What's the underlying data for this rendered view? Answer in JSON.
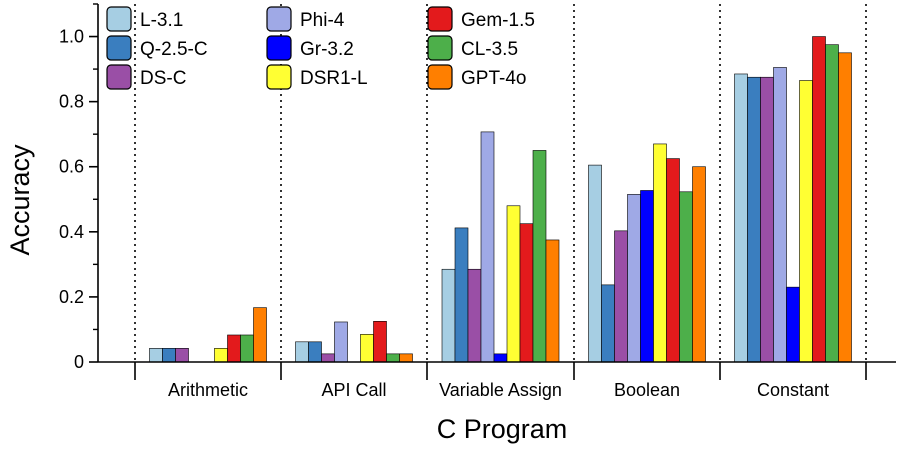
{
  "chart_data": {
    "type": "bar",
    "title": "",
    "xlabel": "C Program",
    "ylabel": "Accuracy",
    "ylim": [
      0,
      1.1
    ],
    "yticks": [
      0,
      0.2,
      0.4,
      0.6,
      0.8,
      1.0
    ],
    "ytick_labels": [
      "0",
      "0.2",
      "0.4",
      "0.6",
      "0.8",
      "1.0"
    ],
    "grid": false,
    "legend_position": "top-left",
    "categories": [
      "Arithmetic",
      "API Call",
      "Variable Assign",
      "Boolean",
      "Constant"
    ],
    "series": [
      {
        "name": "L-3.1",
        "color": "#a6cee3",
        "values": [
          0.042,
          0.062,
          0.285,
          0.605,
          0.885
        ]
      },
      {
        "name": "Q-2.5-C",
        "color": "#3a7ebf",
        "values": [
          0.042,
          0.062,
          0.412,
          0.237,
          0.875
        ]
      },
      {
        "name": "DS-C",
        "color": "#9a4fa6",
        "values": [
          0.042,
          0.025,
          0.285,
          0.403,
          0.875
        ]
      },
      {
        "name": "Phi-4",
        "color": "#9fa9e6",
        "values": [
          0.0,
          0.123,
          0.707,
          0.515,
          0.905
        ]
      },
      {
        "name": "Gr-3.2",
        "color": "#0000ff",
        "values": [
          0.0,
          0.0,
          0.025,
          0.527,
          0.23
        ]
      },
      {
        "name": "DSR1-L",
        "color": "#ffff33",
        "values": [
          0.042,
          0.085,
          0.48,
          0.67,
          0.865
        ]
      },
      {
        "name": "Gem-1.5",
        "color": "#e31a1c",
        "values": [
          0.083,
          0.125,
          0.425,
          0.625,
          1.0
        ]
      },
      {
        "name": "CL-3.5",
        "color": "#4daf4a",
        "values": [
          0.083,
          0.025,
          0.65,
          0.523,
          0.975
        ]
      },
      {
        "name": "GPT-4o",
        "color": "#ff7f00",
        "values": [
          0.167,
          0.025,
          0.375,
          0.6,
          0.95
        ]
      }
    ]
  }
}
